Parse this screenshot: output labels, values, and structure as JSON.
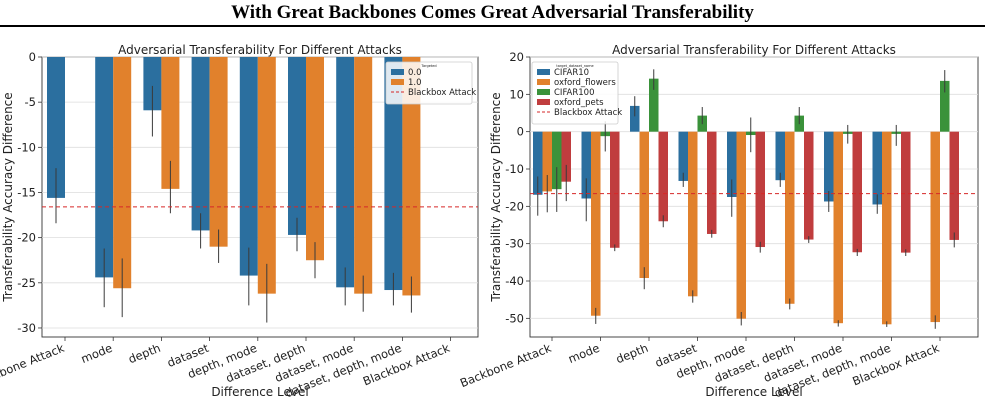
{
  "page": {
    "title": "With Great Backbones Comes Great Adversarial Transferability"
  },
  "chart_data": [
    {
      "type": "bar",
      "title": "Adversarial Transferability For Different Attacks",
      "xlabel": "Difference Level",
      "ylabel": "Transferability Accuracy Difference",
      "ylim": [
        -31,
        0
      ],
      "yticks": [
        0,
        -5,
        -10,
        -15,
        -20,
        -25,
        -30
      ],
      "categories": [
        "Backbone Attack",
        "mode",
        "depth",
        "dataset",
        "depth, mode",
        "dataset, depth",
        "dataset, mode",
        "dataset, depth, mode",
        "Blackbox Attack"
      ],
      "legend": {
        "title": "Targeted",
        "placement": "top-right"
      },
      "series": [
        {
          "name": "0.0",
          "color": "#2b6f9f",
          "values": [
            -15.6,
            -24.4,
            -5.9,
            -19.2,
            -24.2,
            -19.7,
            -25.5,
            -25.8,
            null
          ],
          "err_low": [
            -18.4,
            -27.7,
            -8.8,
            -21.2,
            -27.5,
            -21.5,
            -27.5,
            -27.5,
            null
          ],
          "err_high": [
            -12.3,
            -21.2,
            -3.2,
            -17.3,
            -21.1,
            -17.8,
            -23.3,
            -23.9,
            null
          ]
        },
        {
          "name": "1.0",
          "color": "#e1812c",
          "values": [
            null,
            -25.6,
            -14.6,
            -21.0,
            -26.2,
            -22.5,
            -26.2,
            -26.4,
            null
          ],
          "err_low": [
            null,
            -28.8,
            -17.3,
            -22.8,
            -29.4,
            -24.5,
            -28.2,
            -28.3,
            null
          ],
          "err_high": [
            null,
            -22.3,
            -11.5,
            -19.1,
            -22.9,
            -20.5,
            -24.2,
            -24.3,
            null
          ]
        }
      ],
      "reference_line": {
        "name": "Blackbox Attack",
        "value": -16.6,
        "color": "#d62728"
      },
      "grid": true
    },
    {
      "type": "bar",
      "title": "Adversarial Transferability For Different Attacks",
      "xlabel": "Difference Level",
      "ylabel": "Transferability Accuracy Difference",
      "ylim": [
        -55,
        20
      ],
      "yticks": [
        20,
        10,
        0,
        -10,
        -20,
        -30,
        -40,
        -50
      ],
      "categories": [
        "Backbone Attack",
        "mode",
        "depth",
        "dataset",
        "depth, mode",
        "dataset, depth",
        "dataset, mode",
        "dataset, depth, mode",
        "Blackbox Attack"
      ],
      "legend": {
        "title": "target_dataset_name",
        "placement": "top-left"
      },
      "series": [
        {
          "name": "CIFAR10",
          "color": "#2b6f9f",
          "values": [
            -16.9,
            -17.9,
            6.9,
            -13.2,
            -17.5,
            -13.0,
            -18.7,
            -19.5,
            null
          ],
          "err_low": [
            -22.5,
            -24.0,
            4.1,
            -14.8,
            -22.8,
            -14.8,
            -21.5,
            -22.0,
            null
          ],
          "err_high": [
            -12.0,
            -12.5,
            9.5,
            -11.0,
            -12.8,
            -11.0,
            -15.9,
            -16.8,
            null
          ]
        },
        {
          "name": "oxford_flowers",
          "color": "#e1812c",
          "values": [
            -16.0,
            -49.3,
            -39.2,
            -44.1,
            -50.1,
            -46.1,
            -51.3,
            -51.6,
            -51.0
          ],
          "err_low": [
            -21.6,
            -51.5,
            -42.2,
            -45.8,
            -51.9,
            -47.6,
            -52.2,
            -52.3,
            -52.8
          ],
          "err_high": [
            -11.6,
            -47.2,
            -36.3,
            -42.5,
            -48.3,
            -44.7,
            -50.5,
            -50.8,
            -49.2
          ]
        },
        {
          "name": "CIFAR100",
          "color": "#3a923a",
          "values": [
            -15.4,
            -1.2,
            14.2,
            4.3,
            -0.9,
            4.3,
            -0.6,
            -0.6,
            13.6
          ],
          "err_low": [
            -21.5,
            -5.3,
            11.2,
            2.0,
            -5.5,
            2.0,
            -3.2,
            -3.8,
            10.5
          ],
          "err_high": [
            -9.5,
            2.8,
            16.7,
            6.6,
            3.8,
            6.6,
            1.8,
            1.8,
            16.5
          ]
        },
        {
          "name": "oxford_pets",
          "color": "#c03d3e",
          "values": [
            -13.4,
            -31.1,
            -24.0,
            -27.4,
            -30.9,
            -28.9,
            -32.3,
            -32.4,
            -29.0
          ],
          "err_low": [
            -18.6,
            -32.0,
            -25.6,
            -28.4,
            -32.4,
            -29.8,
            -33.3,
            -33.3,
            -31.0
          ],
          "err_high": [
            -8.9,
            -30.2,
            -22.4,
            -26.3,
            -29.5,
            -28.0,
            -31.4,
            -31.5,
            -27.0
          ]
        }
      ],
      "reference_line": {
        "name": "Blackbox Attack",
        "value": -16.6,
        "color": "#d62728"
      },
      "grid": true
    }
  ]
}
